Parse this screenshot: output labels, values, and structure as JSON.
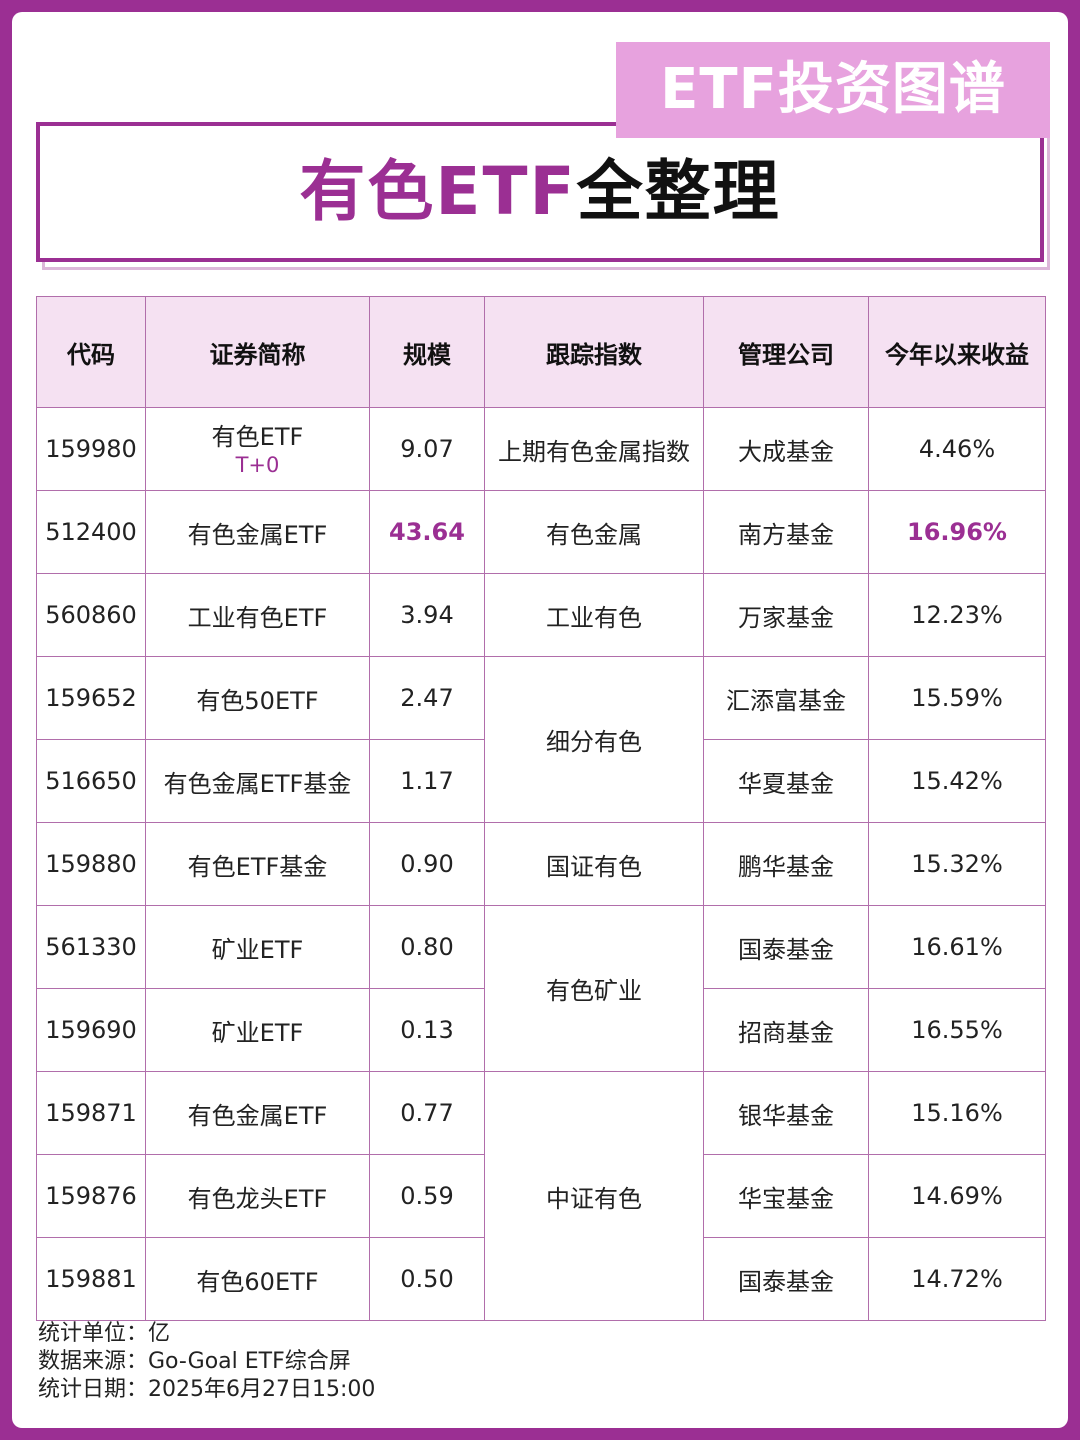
{
  "banner": "ETF投资图谱",
  "title": {
    "accent": "有色ETF",
    "dark": "全整理"
  },
  "headers": [
    "代码",
    "证券简称",
    "规模",
    "跟踪指数",
    "管理公司",
    "今年以来收益"
  ],
  "rows": [
    {
      "code": "159980",
      "name": "有色ETF",
      "tag": "T+0",
      "size": "9.07",
      "index": "上期有色金属指数",
      "manager": "大成基金",
      "ytd": "4.46%"
    },
    {
      "code": "512400",
      "name": "有色金属ETF",
      "size": "43.64",
      "index": "有色金属",
      "manager": "南方基金",
      "ytd": "16.96%"
    },
    {
      "code": "560860",
      "name": "工业有色ETF",
      "size": "3.94",
      "index": "工业有色",
      "manager": "万家基金",
      "ytd": "12.23%"
    },
    {
      "code": "159652",
      "name": "有色50ETF",
      "size": "2.47",
      "index": "细分有色",
      "manager": "汇添富基金",
      "ytd": "15.59%"
    },
    {
      "code": "516650",
      "name": "有色金属ETF基金",
      "size": "1.17",
      "manager": "华夏基金",
      "ytd": "15.42%"
    },
    {
      "code": "159880",
      "name": "有色ETF基金",
      "size": "0.90",
      "index": "国证有色",
      "manager": "鹏华基金",
      "ytd": "15.32%"
    },
    {
      "code": "561330",
      "name": "矿业ETF",
      "size": "0.80",
      "index": "有色矿业",
      "manager": "国泰基金",
      "ytd": "16.61%"
    },
    {
      "code": "159690",
      "name": "矿业ETF",
      "size": "0.13",
      "manager": "招商基金",
      "ytd": "16.55%"
    },
    {
      "code": "159871",
      "name": "有色金属ETF",
      "size": "0.77",
      "index": "中证有色",
      "manager": "银华基金",
      "ytd": "15.16%"
    },
    {
      "code": "159876",
      "name": "有色龙头ETF",
      "size": "0.59",
      "manager": "华宝基金",
      "ytd": "14.69%"
    },
    {
      "code": "159881",
      "name": "有色60ETF",
      "size": "0.50",
      "manager": "国泰基金",
      "ytd": "14.72%"
    }
  ],
  "footer": {
    "unit": "统计单位：亿",
    "source": "数据来源：Go-Goal ETF综合屏",
    "date": "统计日期：2025年6月27日15:00"
  },
  "colors": {
    "accent": "#9b2f93",
    "banner": "#e7a2de",
    "header_bg": "#f5e1f2"
  }
}
